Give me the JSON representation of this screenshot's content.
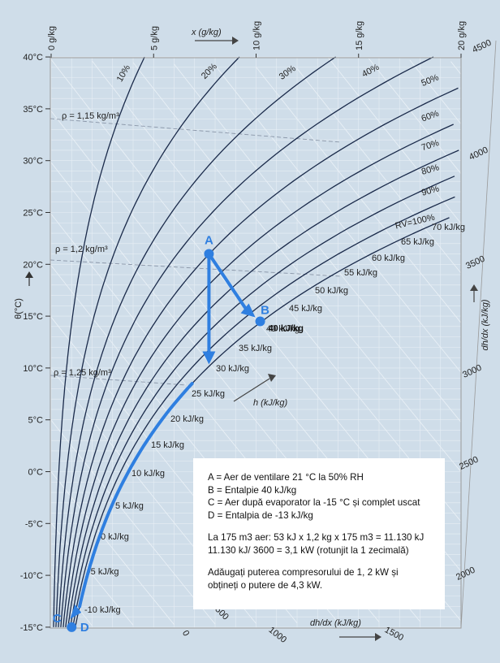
{
  "chart_data": {
    "type": "psychrometric",
    "x_axis": {
      "label": "x (g/kg)",
      "tick_labels": [
        "0 g/kg",
        "5 g/kg",
        "10 g/kg",
        "15 g/kg",
        "20 g/kg"
      ],
      "range": [
        0,
        20
      ]
    },
    "y_axis": {
      "label": "θ(°C)",
      "tick_labels": [
        "40°C",
        "35°C",
        "30°C",
        "25°C",
        "20°C",
        "15°C",
        "10°C",
        "5°C",
        "0°C",
        "-5°C",
        "-10°C",
        "-15°C"
      ],
      "range": [
        -15,
        40
      ]
    },
    "rh_curves": [
      {
        "label": "10%",
        "rh": 10
      },
      {
        "label": "20%",
        "rh": 20
      },
      {
        "label": "30%",
        "rh": 30
      },
      {
        "label": "40%",
        "rh": 40
      },
      {
        "label": "50%",
        "rh": 50
      },
      {
        "label": "60%",
        "rh": 60
      },
      {
        "label": "70%",
        "rh": 70
      },
      {
        "label": "80%",
        "rh": 80
      },
      {
        "label": "90%",
        "rh": 90
      },
      {
        "label": "RV=100%",
        "rh": 100
      }
    ],
    "enthalpy_labels": [
      {
        "label": "70 kJ/kg",
        "h": 70
      },
      {
        "label": "65 kJ/kg",
        "h": 65
      },
      {
        "label": "60 kJ/kg",
        "h": 60
      },
      {
        "label": "55 kJ/kg",
        "h": 55
      },
      {
        "label": "50 kJ/kg",
        "h": 50
      },
      {
        "label": "45 kJ/kg",
        "h": 45
      },
      {
        "label": "40 kJ/kg",
        "h": 40
      },
      {
        "label": "35 kJ/kg",
        "h": 35
      },
      {
        "label": "30 kJ/kg",
        "h": 30
      },
      {
        "label": "25 kJ/kg",
        "h": 25
      },
      {
        "label": "20 kJ/kg",
        "h": 20
      },
      {
        "label": "15 kJ/kg",
        "h": 15
      },
      {
        "label": "10 kJ/kg",
        "h": 10
      },
      {
        "label": "5 kJ/kg",
        "h": 5
      },
      {
        "label": "0 kJ/kg",
        "h": 0
      },
      {
        "label": "-5 kJ/kg",
        "h": -5
      },
      {
        "label": "-10 kJ/kg",
        "h": -10
      }
    ],
    "h_axis_label": "h (kJ/kg)",
    "density_labels": [
      {
        "label": "ρ = 1,15 kg/m³",
        "rho": 1.15
      },
      {
        "label": "ρ = 1,2 kg/m³",
        "rho": 1.2
      },
      {
        "label": "ρ = 1,25 kg/m³",
        "rho": 1.25
      }
    ],
    "dhdx_right_axis": {
      "label": "dh/dx (kJ/kg)",
      "tick_labels": [
        "4500",
        "4000",
        "3500",
        "3000",
        "2500",
        "2000"
      ]
    },
    "dhdx_bottom_axis": {
      "label": "dh/dx (kJ/kg)",
      "tick_labels": [
        "0",
        "500",
        "1000",
        "1500"
      ]
    },
    "points": [
      {
        "label": "A",
        "temperature": 21,
        "x": 7.7
      },
      {
        "label": "B",
        "temperature": 14.5,
        "x": 10.2
      },
      {
        "label": "C",
        "temperature": -15,
        "x": 1.0
      },
      {
        "label": "D",
        "temperature": -15,
        "x": 1.0
      }
    ],
    "point_B_enthalpy_label": "40 kJ/kg",
    "colors": {
      "background": "#cfdde9",
      "grid": "#e8eff5",
      "curves": "#1a2a4a",
      "process": "#2f7fe0",
      "info_box": "#ffffff"
    }
  },
  "info": {
    "line_a": "A = Aer de ventilare 21 °C la 50% RH",
    "line_b": "B = Entalpie 40 kJ/kg",
    "line_c": "C = Aer după evaporator la -15 °C și complet uscat",
    "line_d": "D = Entalpia de -13 kJ/kg",
    "calc_1": "La 175 m3 aer: 53 kJ x 1,2 kg x 175 m3 = 11.130 kJ",
    "calc_2": "11.130 kJ/ 3600 = 3,1 kW (rotunjit la 1 zecimală)",
    "note_1": "Adăugați puterea compresorului de 1, 2 kW și",
    "note_2": "obțineți o putere de 4,3 kW."
  }
}
